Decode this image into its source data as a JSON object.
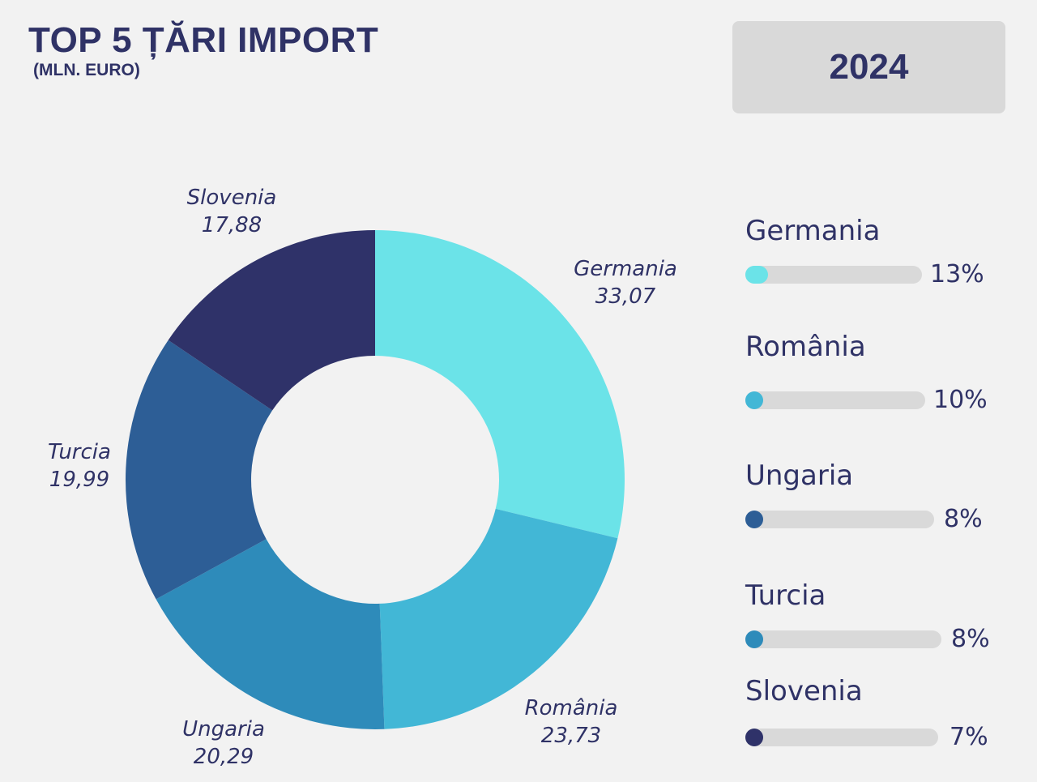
{
  "header": {
    "title": "TOP 5 ȚĂRI IMPORT",
    "subtitle": "(MLN. EURO)",
    "year": "2024"
  },
  "colors": {
    "background": "#f2f2f2",
    "text": "#2f3266",
    "track": "#d9d9d9"
  },
  "chart_data": {
    "type": "pie",
    "variant": "donut",
    "title": "TOP 5 ȚĂRI IMPORT",
    "subtitle": "(MLN. EURO)",
    "categories": [
      "Germania",
      "România",
      "Ungaria",
      "Turcia",
      "Slovenia"
    ],
    "values": [
      33.07,
      23.73,
      20.29,
      19.99,
      17.88
    ],
    "value_labels": [
      "33,07",
      "23,73",
      "20,29",
      "19,99",
      "17,88"
    ],
    "colors": [
      "#6be3e8",
      "#42b7d6",
      "#2e8bba",
      "#2d5e96",
      "#2f3269"
    ]
  },
  "legend": {
    "items": [
      {
        "name": "Germania",
        "percent": 13,
        "percent_label": "13%",
        "color": "#6be3e8"
      },
      {
        "name": "România",
        "percent": 10,
        "percent_label": "10%",
        "color": "#42b7d6"
      },
      {
        "name": "Ungaria",
        "percent": 8,
        "percent_label": "8%",
        "color": "#2d5e96"
      },
      {
        "name": "Turcia",
        "percent": 8,
        "percent_label": "8%",
        "color": "#2e8bba"
      },
      {
        "name": "Slovenia",
        "percent": 7,
        "percent_label": "7%",
        "color": "#2f3269"
      }
    ]
  }
}
